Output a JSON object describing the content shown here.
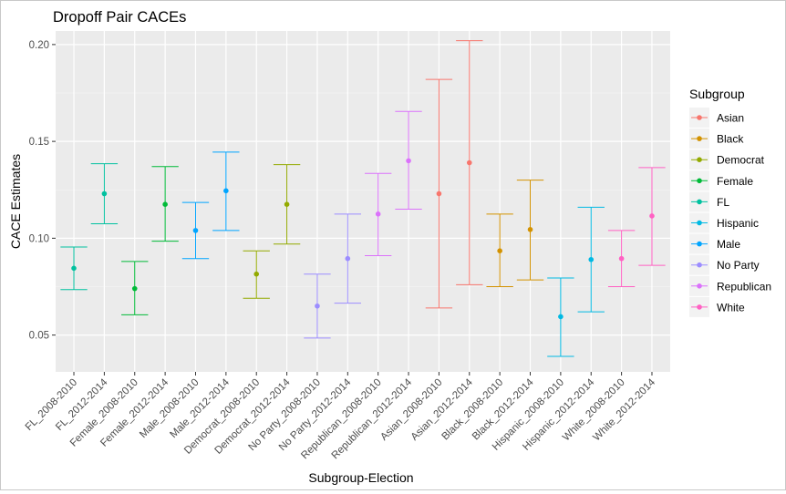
{
  "chart_data": {
    "type": "errorbar",
    "title": "Dropoff Pair CACEs",
    "xlabel": "Subgroup-Election",
    "ylabel": "CACE Estimates",
    "ylim": [
      0.031,
      0.207
    ],
    "yticks": [
      0.05,
      0.1,
      0.15,
      0.2
    ],
    "ytick_labels": [
      "0.05",
      "0.10",
      "0.15",
      "0.20"
    ],
    "grid": true,
    "legend": {
      "title": "Subgroup",
      "placement": "right",
      "entries": [
        {
          "name": "Asian",
          "color": "#F8766D"
        },
        {
          "name": "Black",
          "color": "#D39200"
        },
        {
          "name": "Democrat",
          "color": "#93AA00"
        },
        {
          "name": "Female",
          "color": "#00BA38"
        },
        {
          "name": "FL",
          "color": "#00C19F"
        },
        {
          "name": "Hispanic",
          "color": "#00B9E3"
        },
        {
          "name": "Male",
          "color": "#00A5FF"
        },
        {
          "name": "No Party",
          "color": "#9C8DFF"
        },
        {
          "name": "Republican",
          "color": "#DB72FB"
        },
        {
          "name": "White",
          "color": "#FF61C3"
        }
      ]
    },
    "points": [
      {
        "category": "FL_2008-2010",
        "group": "FL",
        "estimate": 0.0845,
        "lower": 0.0735,
        "upper": 0.0955
      },
      {
        "category": "FL_2012-2014",
        "group": "FL",
        "estimate": 0.123,
        "lower": 0.1075,
        "upper": 0.1385
      },
      {
        "category": "Female_2008-2010",
        "group": "Female",
        "estimate": 0.074,
        "lower": 0.0605,
        "upper": 0.088
      },
      {
        "category": "Female_2012-2014",
        "group": "Female",
        "estimate": 0.1175,
        "lower": 0.0985,
        "upper": 0.137
      },
      {
        "category": "Male_2008-2010",
        "group": "Male",
        "estimate": 0.104,
        "lower": 0.0895,
        "upper": 0.1185
      },
      {
        "category": "Male_2012-2014",
        "group": "Male",
        "estimate": 0.1245,
        "lower": 0.104,
        "upper": 0.1445
      },
      {
        "category": "Democrat_2008-2010",
        "group": "Democrat",
        "estimate": 0.0815,
        "lower": 0.069,
        "upper": 0.0935
      },
      {
        "category": "Democrat_2012-2014",
        "group": "Democrat",
        "estimate": 0.1175,
        "lower": 0.097,
        "upper": 0.138
      },
      {
        "category": "No Party_2008-2010",
        "group": "No Party",
        "estimate": 0.065,
        "lower": 0.0485,
        "upper": 0.0815
      },
      {
        "category": "No Party_2012-2014",
        "group": "No Party",
        "estimate": 0.0895,
        "lower": 0.0665,
        "upper": 0.1125
      },
      {
        "category": "Republican_2008-2010",
        "group": "Republican",
        "estimate": 0.1125,
        "lower": 0.091,
        "upper": 0.1335
      },
      {
        "category": "Republican_2012-2014",
        "group": "Republican",
        "estimate": 0.14,
        "lower": 0.115,
        "upper": 0.1655
      },
      {
        "category": "Asian_2008-2010",
        "group": "Asian",
        "estimate": 0.123,
        "lower": 0.064,
        "upper": 0.182
      },
      {
        "category": "Asian_2012-2014",
        "group": "Asian",
        "estimate": 0.139,
        "lower": 0.076,
        "upper": 0.202
      },
      {
        "category": "Black_2008-2010",
        "group": "Black",
        "estimate": 0.0935,
        "lower": 0.075,
        "upper": 0.1125
      },
      {
        "category": "Black_2012-2014",
        "group": "Black",
        "estimate": 0.1045,
        "lower": 0.0785,
        "upper": 0.13
      },
      {
        "category": "Hispanic_2008-2010",
        "group": "Hispanic",
        "estimate": 0.0595,
        "lower": 0.039,
        "upper": 0.0795
      },
      {
        "category": "Hispanic_2012-2014",
        "group": "Hispanic",
        "estimate": 0.089,
        "lower": 0.062,
        "upper": 0.116
      },
      {
        "category": "White_2008-2010",
        "group": "White",
        "estimate": 0.0895,
        "lower": 0.075,
        "upper": 0.104
      },
      {
        "category": "White_2012-2014",
        "group": "White",
        "estimate": 0.1115,
        "lower": 0.086,
        "upper": 0.1365
      }
    ]
  }
}
